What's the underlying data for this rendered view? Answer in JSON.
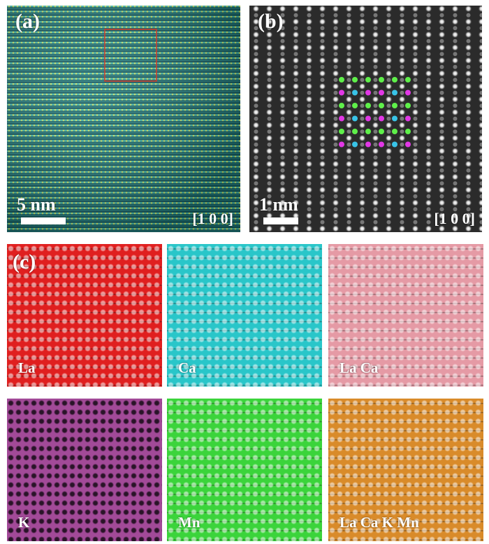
{
  "panels": {
    "a": {
      "letter": "(a)",
      "scale_label": "5 nm",
      "zone_axis": "[1 0 0]",
      "color": "#1f9d9a"
    },
    "b": {
      "letter": "(b)",
      "scale_label": "1 nm",
      "zone_axis": "[1 0 0]",
      "overlay_colors": {
        "green": "#5ff04a",
        "magenta": "#e238e6",
        "cyan": "#39c4e8"
      }
    },
    "c": {
      "letter": "(c)",
      "maps": [
        {
          "label": "La",
          "color": "#e01f1f"
        },
        {
          "label": "Ca",
          "color": "#29c6c9"
        },
        {
          "label": "La Ca",
          "color": "#e59aa5"
        },
        {
          "label": "K",
          "color": "#a24a98"
        },
        {
          "label": "Mn",
          "color": "#3bd43b"
        },
        {
          "label": "La Ca K Mn",
          "color": "#d98b2a"
        }
      ]
    }
  }
}
